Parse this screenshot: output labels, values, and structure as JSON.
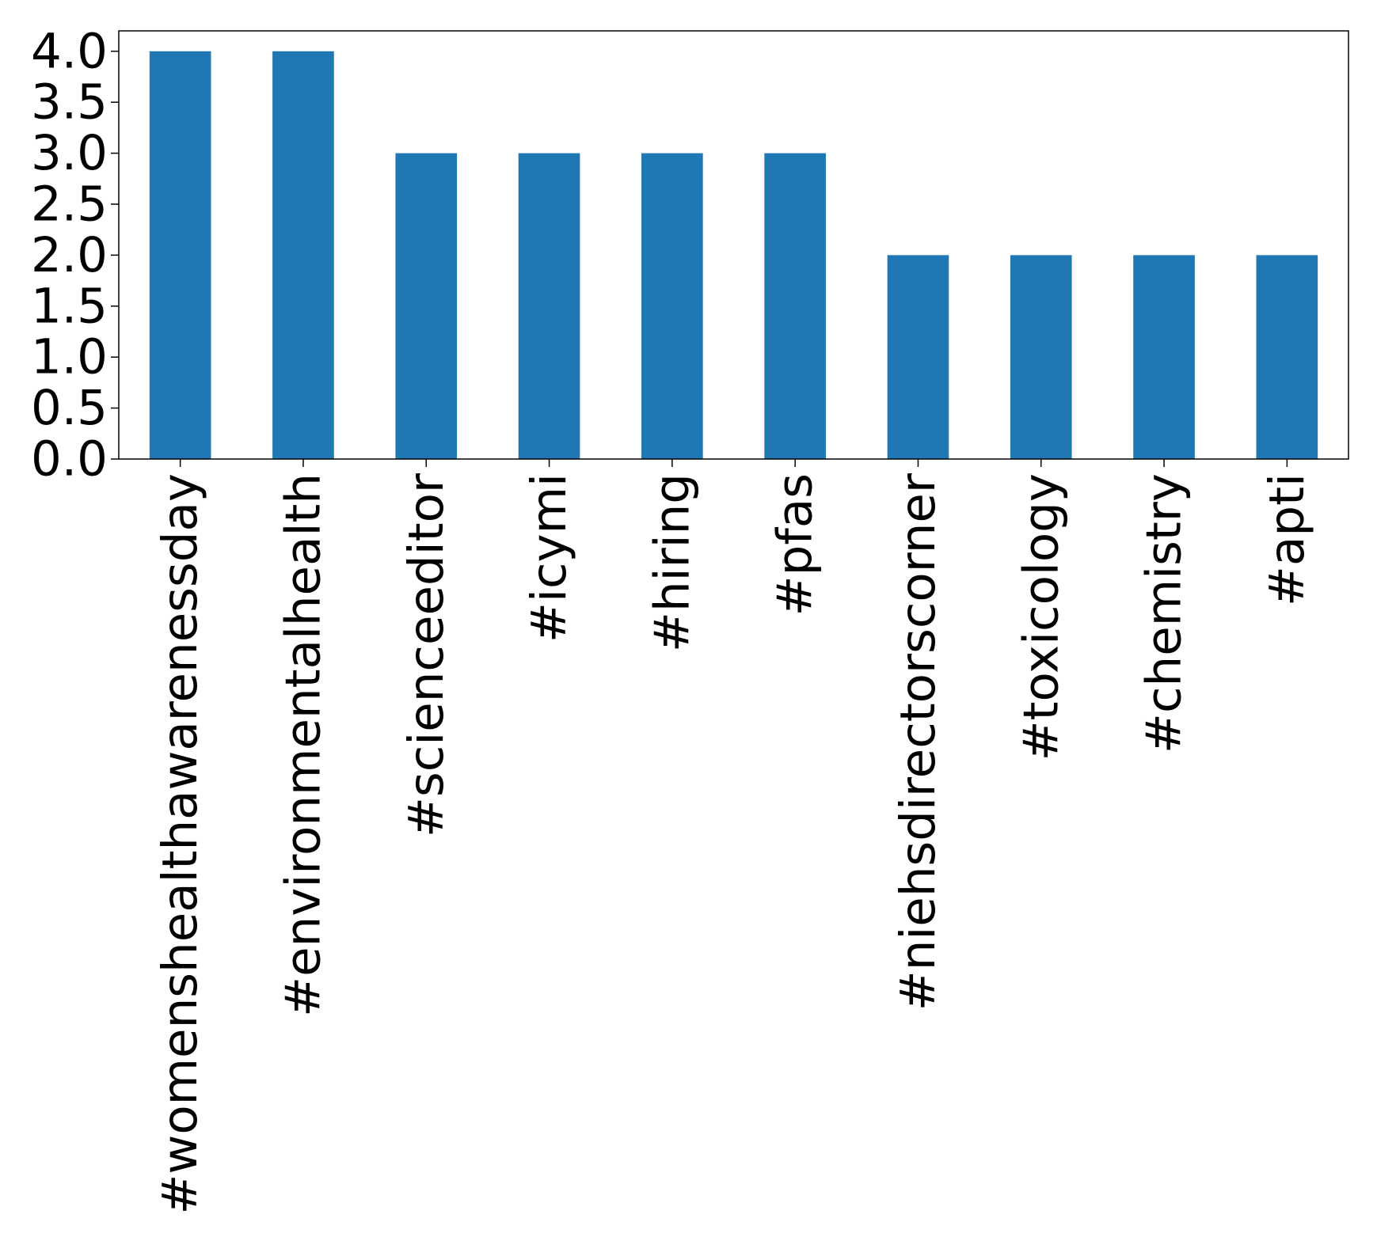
{
  "chart_data": {
    "type": "bar",
    "title": "",
    "xlabel": "",
    "ylabel": "",
    "categories": [
      "#womenshealthawarenessday",
      "#environmentalhealth",
      "#scienceeditor",
      "#icymi",
      "#hiring",
      "#pfas",
      "#niehsdirectorscorner",
      "#toxicology",
      "#chemistry",
      "#apti"
    ],
    "values": [
      4,
      4,
      3,
      3,
      3,
      3,
      2,
      2,
      2,
      2
    ],
    "ylim": [
      0,
      4.2
    ],
    "yticks": [
      "0.0",
      "0.5",
      "1.0",
      "1.5",
      "2.0",
      "2.5",
      "3.0",
      "3.5",
      "4.0"
    ],
    "grid": false,
    "legend": "none",
    "bar_color": "#1f77b4"
  }
}
